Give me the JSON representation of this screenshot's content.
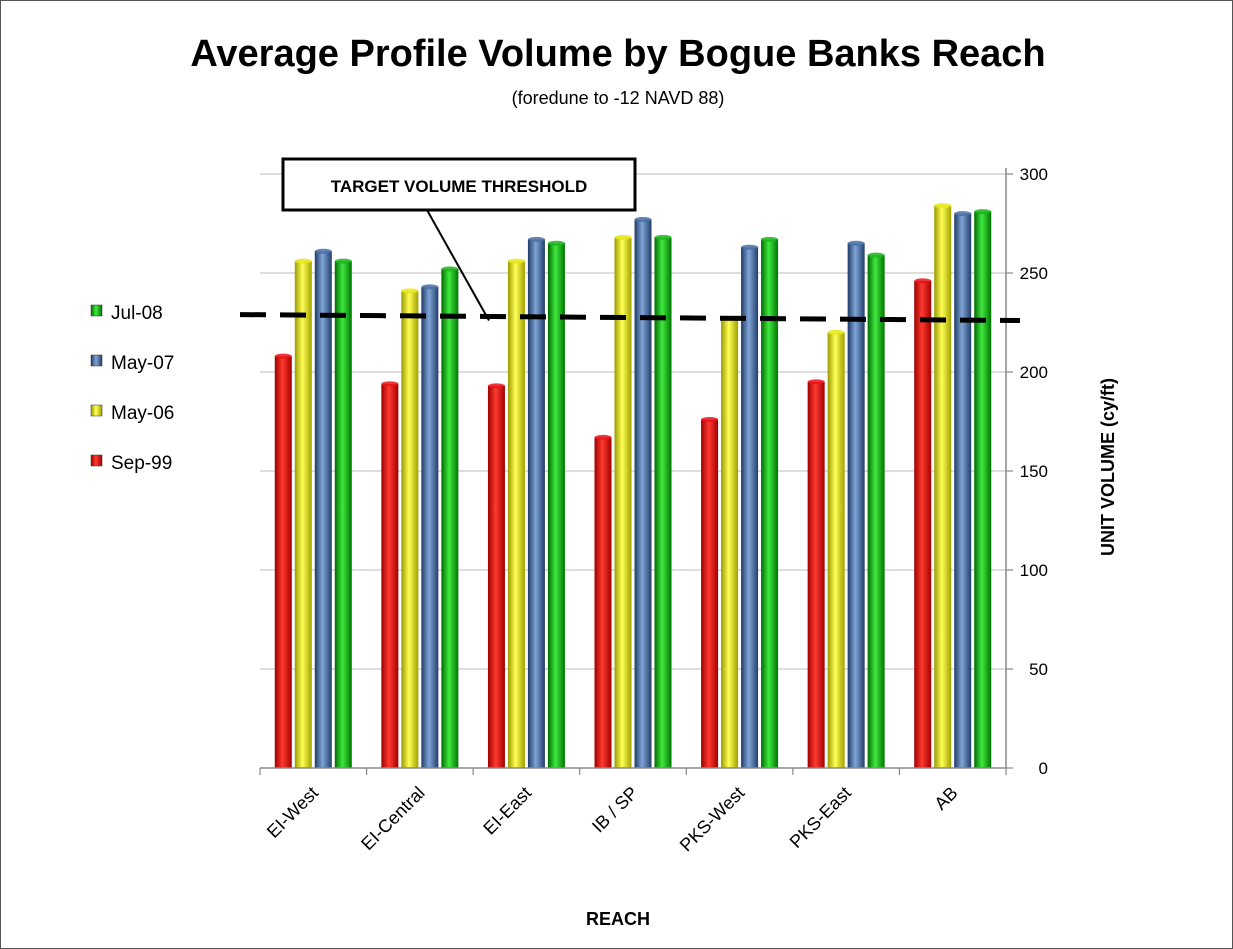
{
  "chart_data": {
    "type": "bar",
    "title": "Average Profile Volume by Bogue Banks Reach",
    "subtitle": "(foredune to -12 NAVD 88)",
    "xlabel": "REACH",
    "ylabel": "UNIT  VOLUME (cy/ft)",
    "ylim": [
      0,
      300
    ],
    "yticks": [
      0,
      50,
      100,
      150,
      200,
      250,
      300
    ],
    "y_axis_side": "right",
    "grid": "horizontal",
    "legend_position": "left",
    "categories": [
      "EI-West",
      "EI-Central",
      "EI-East",
      "IB / SP",
      "PKS-West",
      "PKS-East",
      "AB"
    ],
    "series": [
      {
        "name": "Sep-99",
        "color": "#e8141b",
        "values": [
          208,
          194,
          193,
          167,
          176,
          195,
          246
        ]
      },
      {
        "name": "May-06",
        "color": "#e8e81a",
        "values": [
          256,
          241,
          256,
          268,
          227,
          220,
          284
        ]
      },
      {
        "name": "May-07",
        "color": "#4a6fa5",
        "values": [
          261,
          243,
          267,
          277,
          263,
          265,
          280
        ]
      },
      {
        "name": "Jul-08",
        "color": "#1fb31f",
        "values": [
          256,
          252,
          265,
          268,
          267,
          259,
          281
        ]
      }
    ],
    "legend_order": [
      "Jul-08",
      "May-07",
      "May-06",
      "Sep-99"
    ],
    "threshold": {
      "label": "TARGET VOLUME THRESHOLD",
      "start_value": 229,
      "end_value": 226
    }
  }
}
